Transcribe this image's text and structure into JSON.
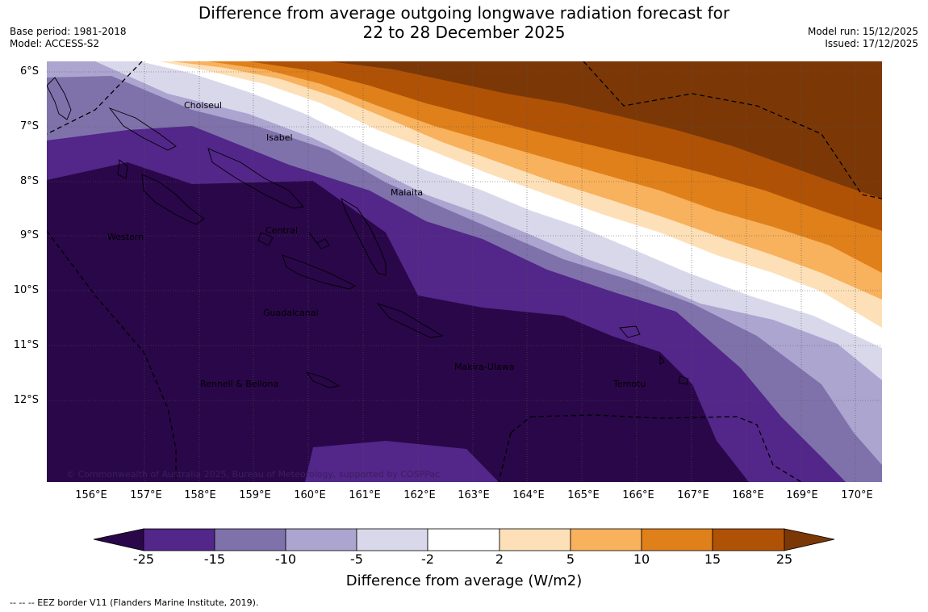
{
  "header": {
    "title_line1": "Difference from average outgoing longwave radiation forecast for",
    "title_line2": "22 to 28 December 2025",
    "base_period": "Base period: 1981-2018",
    "model": "Model: ACCESS-S2",
    "model_run": "Model run: 15/12/2025",
    "issued": "Issued: 17/12/2025"
  },
  "map": {
    "lat_labels": [
      "6°S",
      "7°S",
      "8°S",
      "9°S",
      "10°S",
      "11°S",
      "12°S"
    ],
    "lon_labels": [
      "156°E",
      "157°E",
      "158°E",
      "159°E",
      "160°E",
      "161°E",
      "162°E",
      "163°E",
      "164°E",
      "165°E",
      "166°E",
      "167°E",
      "168°E",
      "169°E",
      "170°E"
    ],
    "regions": [
      "Choiseul",
      "Isabel",
      "Malaita",
      "Western",
      "Central",
      "Guadalcanal",
      "Makira-Ulawa",
      "Rennell & Bellona",
      "Temotu"
    ],
    "copyright": "© Commonwealth of Australia 2025, Bureau of Meteorology, supported by COSPPac"
  },
  "colorbar": {
    "title": "Difference from average (W/m2)",
    "ticks": [
      "-25",
      "-15",
      "-10",
      "-5",
      "-2",
      "2",
      "5",
      "10",
      "15",
      "25"
    ],
    "colors": [
      "#2a0749",
      "#53268a",
      "#7f72ab",
      "#aca5d0",
      "#d9d8eb",
      "#ffffff",
      "#fde0b8",
      "#f8b15d",
      "#e0801a",
      "#b05206",
      "#7b3806"
    ]
  },
  "footer": {
    "eez_note": "--  --  -- EEZ border V11 (Flanders Marine Institute, 2019)."
  }
}
